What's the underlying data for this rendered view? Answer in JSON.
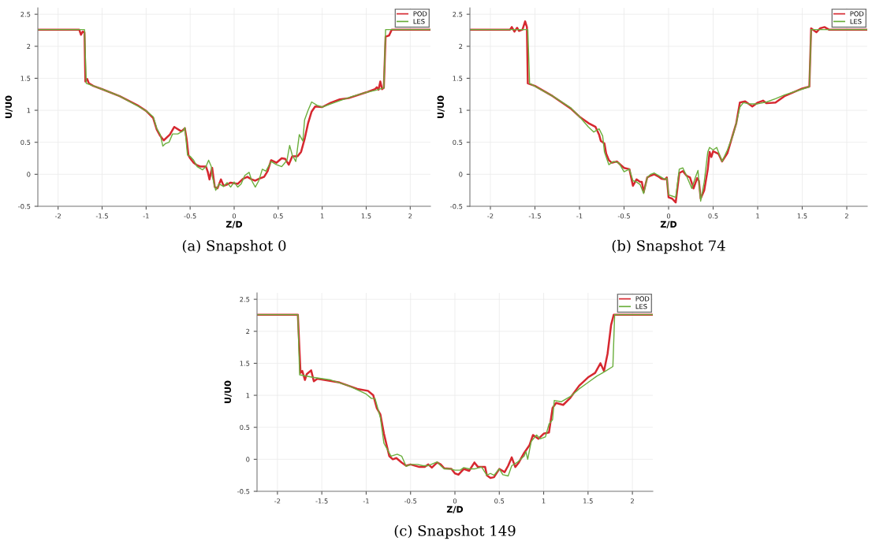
{
  "chart_data": [
    {
      "type": "line",
      "xlabel": "Z/D",
      "ylabel": "U/U0",
      "annotations": [
        "(a) Snapshot 0"
      ],
      "xlim": [
        -2.23,
        2.23
      ],
      "ylim": [
        -0.5,
        2.6
      ],
      "xticks": [
        -2,
        -1.5,
        -1,
        -0.5,
        0,
        0.5,
        1,
        1.5,
        2
      ],
      "yticks": [
        -0.5,
        0,
        0.5,
        1,
        1.5,
        2,
        2.5
      ],
      "grid": true,
      "legend": "top right",
      "line_style": "solid",
      "series": [
        {
          "name": "POD",
          "color": "#d62830",
          "x": [
            -2.23,
            -1.76,
            -1.74,
            -1.72,
            -1.7,
            -1.69,
            -1.67,
            -1.65,
            -1.6,
            -1.5,
            -1.3,
            -1.1,
            -1.0,
            -0.92,
            -0.88,
            -0.84,
            -0.8,
            -0.73,
            -0.68,
            -0.6,
            -0.56,
            -0.54,
            -0.52,
            -0.5,
            -0.46,
            -0.42,
            -0.38,
            -0.32,
            -0.3,
            -0.28,
            -0.26,
            -0.25,
            -0.22,
            -0.19,
            -0.15,
            -0.12,
            -0.08,
            -0.04,
            0,
            0.04,
            0.1,
            0.15,
            0.2,
            0.24,
            0.3,
            0.34,
            0.38,
            0.42,
            0.48,
            0.54,
            0.58,
            0.62,
            0.66,
            0.72,
            0.76,
            0.8,
            0.84,
            0.88,
            0.92,
            1.0,
            1.1,
            1.2,
            1.3,
            1.5,
            1.6,
            1.62,
            1.64,
            1.66,
            1.68,
            1.7,
            1.72,
            1.76,
            1.79,
            2.23
          ],
          "values": [
            2.26,
            2.26,
            2.18,
            2.23,
            2.22,
            1.45,
            1.49,
            1.42,
            1.38,
            1.33,
            1.22,
            1.08,
            0.99,
            0.88,
            0.7,
            0.6,
            0.53,
            0.62,
            0.74,
            0.67,
            0.72,
            0.55,
            0.3,
            0.25,
            0.18,
            0.14,
            0.12,
            0.12,
            0.04,
            -0.08,
            0.05,
            0.1,
            -0.2,
            -0.22,
            -0.08,
            -0.18,
            -0.16,
            -0.13,
            -0.14,
            -0.15,
            -0.07,
            -0.04,
            -0.08,
            -0.1,
            -0.06,
            -0.04,
            0.05,
            0.22,
            0.18,
            0.25,
            0.24,
            0.15,
            0.28,
            0.28,
            0.35,
            0.55,
            0.8,
            0.98,
            1.06,
            1.05,
            1.12,
            1.17,
            1.19,
            1.28,
            1.33,
            1.36,
            1.32,
            1.45,
            1.33,
            1.35,
            2.15,
            2.17,
            2.26,
            2.26
          ]
        },
        {
          "name": "LES",
          "color": "#6aae3c",
          "x": [
            -2.23,
            -1.7,
            -1.68,
            -1.6,
            -1.5,
            -1.3,
            -1.1,
            -1.0,
            -0.92,
            -0.88,
            -0.84,
            -0.81,
            -0.78,
            -0.74,
            -0.7,
            -0.64,
            -0.58,
            -0.56,
            -0.53,
            -0.5,
            -0.46,
            -0.42,
            -0.36,
            -0.32,
            -0.29,
            -0.26,
            -0.25,
            -0.21,
            -0.17,
            -0.12,
            -0.08,
            -0.04,
            0,
            0.04,
            0.08,
            0.12,
            0.17,
            0.2,
            0.24,
            0.28,
            0.32,
            0.36,
            0.42,
            0.48,
            0.54,
            0.6,
            0.63,
            0.66,
            0.7,
            0.74,
            0.78,
            0.8,
            0.84,
            0.88,
            0.94,
            1.0,
            1.1,
            1.2,
            1.35,
            1.5,
            1.6,
            1.7,
            1.72,
            2.23
          ],
          "values": [
            2.26,
            2.26,
            1.42,
            1.38,
            1.33,
            1.22,
            1.07,
            0.99,
            0.9,
            0.72,
            0.62,
            0.44,
            0.48,
            0.5,
            0.63,
            0.63,
            0.68,
            0.73,
            0.3,
            0.28,
            0.22,
            0.12,
            0.07,
            0.12,
            0.22,
            0.12,
            -0.02,
            -0.25,
            -0.15,
            -0.19,
            -0.13,
            -0.2,
            -0.12,
            -0.2,
            -0.15,
            -0.02,
            0.03,
            -0.1,
            -0.2,
            -0.1,
            0.08,
            0.05,
            0.2,
            0.15,
            0.12,
            0.22,
            0.45,
            0.3,
            0.2,
            0.62,
            0.52,
            0.85,
            1.0,
            1.13,
            1.08,
            1.05,
            1.1,
            1.15,
            1.22,
            1.28,
            1.31,
            1.35,
            2.26,
            2.26
          ]
        }
      ]
    },
    {
      "type": "line",
      "xlabel": "Z/D",
      "ylabel": "U/U0",
      "annotations": [
        "(b) Snapshot 74"
      ],
      "xlim": [
        -2.23,
        2.23
      ],
      "ylim": [
        -0.5,
        2.6
      ],
      "xticks": [
        -2,
        -1.5,
        -1,
        -0.5,
        0,
        0.5,
        1,
        1.5,
        2
      ],
      "yticks": [
        -0.5,
        0,
        0.5,
        1,
        1.5,
        2,
        2.5
      ],
      "grid": true,
      "legend": "top right",
      "line_style": "solid",
      "series": [
        {
          "name": "POD",
          "color": "#d62830",
          "x": [
            -2.23,
            -1.78,
            -1.76,
            -1.73,
            -1.7,
            -1.68,
            -1.64,
            -1.61,
            -1.59,
            -1.58,
            -1.5,
            -1.3,
            -1.1,
            -1.0,
            -0.9,
            -0.82,
            -0.78,
            -0.76,
            -0.72,
            -0.7,
            -0.67,
            -0.64,
            -0.58,
            -0.5,
            -0.44,
            -0.42,
            -0.4,
            -0.36,
            -0.32,
            -0.3,
            -0.28,
            -0.24,
            -0.2,
            -0.16,
            -0.12,
            -0.08,
            -0.04,
            -0.02,
            0.0,
            0.04,
            0.08,
            0.12,
            0.16,
            0.2,
            0.24,
            0.28,
            0.32,
            0.34,
            0.36,
            0.4,
            0.44,
            0.46,
            0.48,
            0.5,
            0.56,
            0.6,
            0.66,
            0.7,
            0.76,
            0.8,
            0.86,
            0.9,
            0.94,
            1.0,
            1.06,
            1.1,
            1.2,
            1.3,
            1.5,
            1.58,
            1.6,
            1.63,
            1.66,
            1.7,
            1.75,
            1.8,
            2.23
          ],
          "values": [
            2.26,
            2.26,
            2.3,
            2.23,
            2.29,
            2.24,
            2.26,
            2.39,
            2.3,
            1.42,
            1.38,
            1.22,
            1.03,
            0.9,
            0.8,
            0.74,
            0.62,
            0.52,
            0.48,
            0.32,
            0.22,
            0.18,
            0.2,
            0.1,
            0.08,
            -0.05,
            -0.18,
            -0.08,
            -0.12,
            -0.12,
            -0.28,
            -0.05,
            -0.02,
            0.0,
            -0.03,
            -0.07,
            -0.08,
            -0.05,
            -0.36,
            -0.38,
            -0.44,
            0.02,
            0.05,
            -0.02,
            -0.05,
            -0.22,
            -0.06,
            -0.1,
            -0.38,
            -0.25,
            0.08,
            0.35,
            0.27,
            0.36,
            0.32,
            0.2,
            0.33,
            0.52,
            0.8,
            1.12,
            1.14,
            1.1,
            1.06,
            1.12,
            1.15,
            1.11,
            1.12,
            1.22,
            1.34,
            1.37,
            2.28,
            2.25,
            2.22,
            2.28,
            2.3,
            2.26,
            2.26
          ]
        },
        {
          "name": "LES",
          "color": "#6aae3c",
          "x": [
            -2.23,
            -1.58,
            -1.56,
            -1.3,
            -1.1,
            -1.0,
            -0.9,
            -0.84,
            -0.78,
            -0.74,
            -0.72,
            -0.67,
            -0.62,
            -0.56,
            -0.5,
            -0.44,
            -0.4,
            -0.36,
            -0.32,
            -0.28,
            -0.24,
            -0.2,
            -0.16,
            -0.1,
            -0.04,
            -0.02,
            0.0,
            0.04,
            0.08,
            0.12,
            0.16,
            0.2,
            0.26,
            0.3,
            0.33,
            0.36,
            0.4,
            0.44,
            0.46,
            0.5,
            0.54,
            0.6,
            0.66,
            0.72,
            0.76,
            0.8,
            0.84,
            0.9,
            1.0,
            1.1,
            1.2,
            1.3,
            1.5,
            1.58,
            1.6,
            2.23
          ],
          "values": [
            2.26,
            2.26,
            1.42,
            1.22,
            1.04,
            0.9,
            0.74,
            0.66,
            0.71,
            0.6,
            0.35,
            0.15,
            0.2,
            0.18,
            0.04,
            0.08,
            -0.1,
            -0.12,
            -0.16,
            -0.3,
            -0.05,
            0.0,
            0.02,
            -0.03,
            -0.08,
            -0.06,
            -0.32,
            -0.34,
            -0.36,
            0.08,
            0.1,
            -0.02,
            -0.22,
            -0.05,
            0.06,
            -0.42,
            -0.12,
            0.35,
            0.42,
            0.38,
            0.42,
            0.2,
            0.38,
            0.6,
            0.8,
            1.05,
            1.12,
            1.1,
            1.1,
            1.13,
            1.18,
            1.24,
            1.33,
            1.37,
            2.26,
            2.26
          ]
        }
      ]
    },
    {
      "type": "line",
      "xlabel": "Z/D",
      "ylabel": "U/U0",
      "annotations": [
        "(c) Snapshot 149"
      ],
      "xlim": [
        -2.23,
        2.23
      ],
      "ylim": [
        -0.5,
        2.6
      ],
      "xticks": [
        -2,
        -1.5,
        -1,
        -0.5,
        0,
        0.5,
        1,
        1.5,
        2
      ],
      "yticks": [
        -0.5,
        0,
        0.5,
        1,
        1.5,
        2,
        2.5
      ],
      "grid": true,
      "legend": "top right",
      "line_style": "solid",
      "series": [
        {
          "name": "POD",
          "color": "#d62830",
          "x": [
            -2.23,
            -1.77,
            -1.74,
            -1.72,
            -1.69,
            -1.67,
            -1.62,
            -1.59,
            -1.55,
            -1.3,
            -1.1,
            -0.98,
            -0.92,
            -0.88,
            -0.84,
            -0.8,
            -0.74,
            -0.7,
            -0.66,
            -0.6,
            -0.55,
            -0.5,
            -0.4,
            -0.34,
            -0.3,
            -0.26,
            -0.2,
            -0.16,
            -0.12,
            -0.04,
            0.0,
            0.04,
            0.1,
            0.16,
            0.22,
            0.26,
            0.34,
            0.36,
            0.4,
            0.44,
            0.5,
            0.56,
            0.6,
            0.64,
            0.68,
            0.72,
            0.78,
            0.84,
            0.88,
            0.94,
            1.0,
            1.06,
            1.1,
            1.14,
            1.22,
            1.3,
            1.4,
            1.5,
            1.58,
            1.64,
            1.68,
            1.72,
            1.76,
            1.79,
            2.23
          ],
          "values": [
            2.26,
            2.26,
            1.35,
            1.38,
            1.24,
            1.33,
            1.39,
            1.22,
            1.26,
            1.2,
            1.1,
            1.07,
            1.0,
            0.8,
            0.7,
            0.4,
            0.05,
            0.0,
            0.02,
            -0.05,
            -0.1,
            -0.08,
            -0.12,
            -0.12,
            -0.08,
            -0.13,
            -0.05,
            -0.08,
            -0.14,
            -0.15,
            -0.22,
            -0.24,
            -0.15,
            -0.18,
            -0.05,
            -0.12,
            -0.12,
            -0.25,
            -0.29,
            -0.28,
            -0.15,
            -0.2,
            -0.1,
            0.03,
            -0.12,
            -0.05,
            0.1,
            0.22,
            0.38,
            0.32,
            0.4,
            0.42,
            0.8,
            0.88,
            0.85,
            0.96,
            1.15,
            1.28,
            1.35,
            1.5,
            1.38,
            1.65,
            2.1,
            2.26,
            2.26
          ]
        },
        {
          "name": "LES",
          "color": "#6aae3c",
          "x": [
            -2.23,
            -1.77,
            -1.75,
            -1.6,
            -1.4,
            -1.2,
            -1.0,
            -0.94,
            -0.9,
            -0.84,
            -0.8,
            -0.76,
            -0.72,
            -0.65,
            -0.6,
            -0.55,
            -0.5,
            -0.42,
            -0.36,
            -0.3,
            -0.2,
            -0.16,
            -0.12,
            -0.05,
            0,
            0.06,
            0.1,
            0.16,
            0.22,
            0.3,
            0.36,
            0.4,
            0.44,
            0.5,
            0.54,
            0.6,
            0.64,
            0.7,
            0.78,
            0.8,
            0.82,
            0.86,
            0.92,
            0.96,
            1.02,
            1.06,
            1.1,
            1.12,
            1.2,
            1.3,
            1.4,
            1.5,
            1.6,
            1.7,
            1.78,
            1.8,
            2.23
          ],
          "values": [
            2.26,
            2.26,
            1.32,
            1.28,
            1.24,
            1.15,
            1.02,
            0.95,
            0.95,
            0.65,
            0.25,
            0.15,
            0.05,
            0.08,
            0.05,
            -0.11,
            -0.08,
            -0.08,
            -0.1,
            -0.1,
            -0.04,
            -0.1,
            -0.15,
            -0.15,
            -0.17,
            -0.17,
            -0.13,
            -0.15,
            -0.15,
            -0.12,
            -0.25,
            -0.22,
            -0.25,
            -0.15,
            -0.24,
            -0.26,
            -0.1,
            -0.05,
            0.05,
            0.12,
            0.0,
            0.28,
            0.38,
            0.32,
            0.35,
            0.55,
            0.62,
            0.92,
            0.9,
            0.98,
            1.1,
            1.2,
            1.3,
            1.38,
            1.45,
            2.26,
            2.26
          ]
        }
      ]
    }
  ]
}
